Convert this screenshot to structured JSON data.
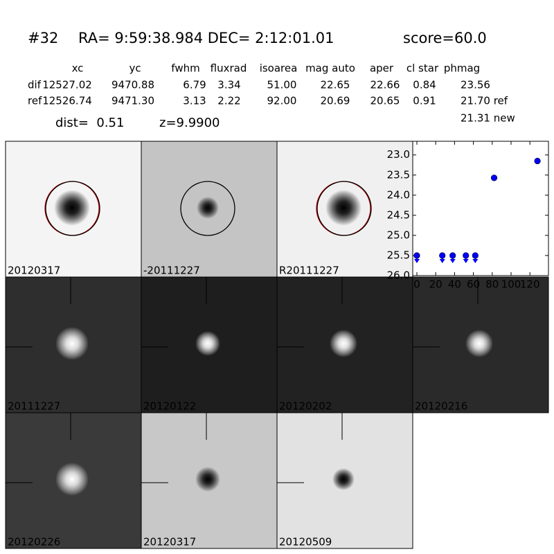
{
  "header": {
    "id": "#32",
    "coords": "RA= 9:59:38.984 DEC= 2:12:01.01",
    "score": "score=60.0"
  },
  "table": {
    "columns": [
      "xc",
      "yc",
      "fwhm",
      "fluxrad",
      "isoarea",
      "mag auto",
      "aper",
      "cl star",
      "phmag"
    ],
    "rows": [
      {
        "label": "dif",
        "cells": [
          "12527.02",
          "9470.88",
          "6.79",
          "3.34",
          "51.00",
          "22.65",
          "22.66",
          "0.84",
          "23.56"
        ]
      },
      {
        "label": "ref",
        "cells": [
          "12526.74",
          "9471.30",
          "3.13",
          "2.22",
          "92.00",
          "20.69",
          "20.65",
          "0.91",
          "21.70 ref"
        ]
      }
    ],
    "note": "21.31 new"
  },
  "dist": "dist=  0.51",
  "z": "z=9.9900",
  "stamps": [
    {
      "label": "20120317"
    },
    {
      "label": "-20111227"
    },
    {
      "label": "R20111227"
    },
    {
      "label": "20111227"
    },
    {
      "label": "20120122"
    },
    {
      "label": "20120202"
    },
    {
      "label": "20120216"
    },
    {
      "label": "20120226"
    },
    {
      "label": "20120317",
      "color": "#ff0000"
    },
    {
      "label": "20120509"
    }
  ],
  "chart_data": {
    "type": "scatter",
    "x": [
      0,
      27,
      38,
      52,
      62,
      82,
      128
    ],
    "series": [
      {
        "color": "#0000ff",
        "values": [
          25.5,
          25.5,
          25.5,
          25.5,
          25.5,
          23.57,
          23.15
        ],
        "upper_limit": [
          true,
          true,
          true,
          true,
          true,
          false,
          false
        ]
      }
    ],
    "xlim": [
      -4.4,
      139.7
    ],
    "ylim": [
      26.0,
      22.66
    ],
    "xticks": [
      0,
      20,
      40,
      60,
      80,
      100,
      120
    ],
    "yticks": [
      {
        "value": 23.0,
        "label": "23.0"
      },
      {
        "value": 23.5,
        "label": "23.5"
      },
      {
        "value": 24.0,
        "label": "24.0"
      },
      {
        "value": 24.5,
        "label": "24.5"
      },
      {
        "value": 25.0,
        "label": "25.0"
      },
      {
        "value": 25.5,
        "label": "25.5"
      },
      {
        "value": 26.0,
        "label": "26.0"
      }
    ]
  }
}
